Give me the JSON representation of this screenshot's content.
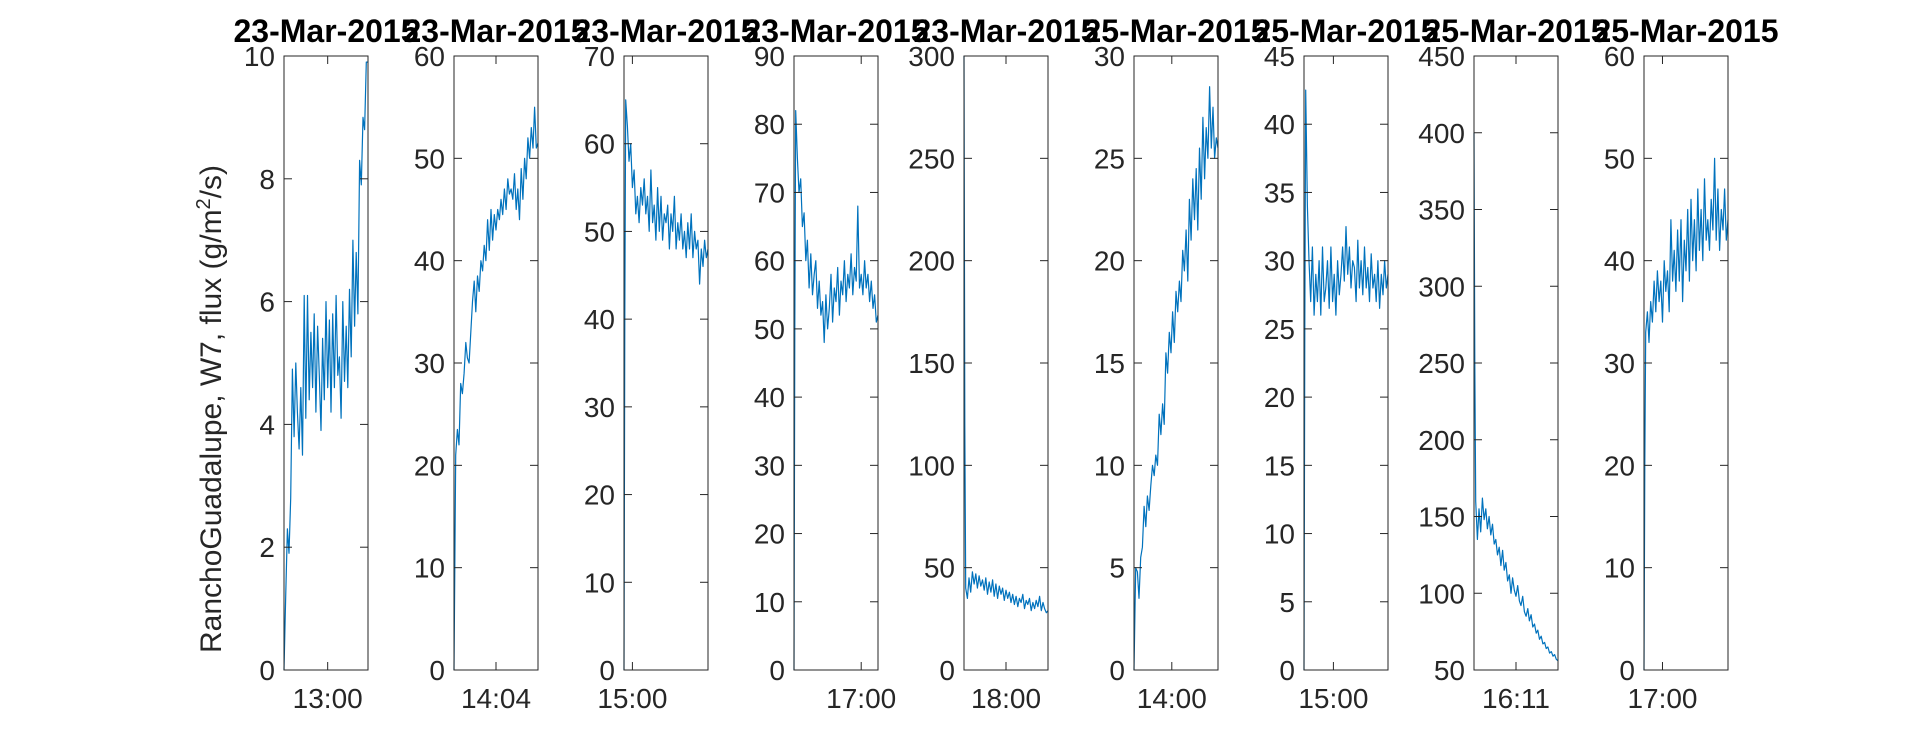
{
  "figure": {
    "ylabel": "RanchoGuadalupe, W7, flux (g/m",
    "ylabel_sup": "2",
    "ylabel_tail": "/s)",
    "line_color": "#0072BD"
  },
  "chart_data": [
    {
      "type": "line",
      "title": "23-Mar-2015",
      "ylim": [
        0,
        10
      ],
      "yticks": [
        0,
        2,
        4,
        6,
        8,
        10
      ],
      "xticks": [
        {
          "label": "13:00",
          "pos": 0.52
        }
      ],
      "x": [
        0,
        0.02,
        0.04,
        0.06,
        0.08,
        0.1,
        0.12,
        0.14,
        0.16,
        0.18,
        0.2,
        0.22,
        0.24,
        0.26,
        0.28,
        0.3,
        0.32,
        0.34,
        0.36,
        0.38,
        0.4,
        0.42,
        0.44,
        0.46,
        0.48,
        0.5,
        0.52,
        0.54,
        0.56,
        0.58,
        0.6,
        0.62,
        0.64,
        0.66,
        0.68,
        0.7,
        0.72,
        0.74,
        0.76,
        0.78,
        0.8,
        0.82,
        0.84,
        0.86,
        0.88,
        0.9,
        0.92,
        0.94,
        0.96,
        0.98,
        1.0
      ],
      "y": [
        0.0,
        1.2,
        2.3,
        1.9,
        2.8,
        4.9,
        3.8,
        5.0,
        4.2,
        3.6,
        4.6,
        3.5,
        6.1,
        4.1,
        6.1,
        4.4,
        5.5,
        4.6,
        5.8,
        4.2,
        5.6,
        4.8,
        3.9,
        5.4,
        4.4,
        6.0,
        4.6,
        5.7,
        4.2,
        5.8,
        4.6,
        6.1,
        4.8,
        5.1,
        4.1,
        6.0,
        4.7,
        5.6,
        4.6,
        6.2,
        5.1,
        7.0,
        5.6,
        6.8,
        5.8,
        8.3,
        7.9,
        9.0,
        8.8,
        9.9,
        9.9
      ]
    },
    {
      "type": "line",
      "title": "23-Mar-2015",
      "ylim": [
        0,
        60
      ],
      "yticks": [
        0,
        10,
        20,
        30,
        40,
        50,
        60
      ],
      "xticks": [
        {
          "label": "14:04",
          "pos": 0.5
        }
      ],
      "x": [
        0,
        0.02,
        0.04,
        0.06,
        0.08,
        0.1,
        0.12,
        0.14,
        0.16,
        0.18,
        0.2,
        0.22,
        0.24,
        0.26,
        0.28,
        0.3,
        0.32,
        0.34,
        0.36,
        0.38,
        0.4,
        0.42,
        0.44,
        0.46,
        0.48,
        0.5,
        0.52,
        0.54,
        0.56,
        0.58,
        0.6,
        0.62,
        0.64,
        0.66,
        0.68,
        0.7,
        0.72,
        0.74,
        0.76,
        0.78,
        0.8,
        0.82,
        0.84,
        0.86,
        0.88,
        0.9,
        0.92,
        0.94,
        0.96,
        0.98,
        1.0
      ],
      "y": [
        0.0,
        21.0,
        23.5,
        22.0,
        28.0,
        27.0,
        29.0,
        32.0,
        30.5,
        30.0,
        33.0,
        36.0,
        38.0,
        35.0,
        38.5,
        37.0,
        40.0,
        39.0,
        41.5,
        40.0,
        44.0,
        41.0,
        45.0,
        42.0,
        44.5,
        43.0,
        45.0,
        44.0,
        46.0,
        44.5,
        47.0,
        45.0,
        48.0,
        46.5,
        47.0,
        46.0,
        48.5,
        45.0,
        47.0,
        44.0,
        49.0,
        46.0,
        50.0,
        48.0,
        52.0,
        50.0,
        53.0,
        51.0,
        55.0,
        51.0,
        51.5
      ]
    },
    {
      "type": "line",
      "title": "23-Mar-2015",
      "ylim": [
        0,
        70
      ],
      "yticks": [
        0,
        10,
        20,
        30,
        40,
        50,
        60,
        70
      ],
      "xticks": [
        {
          "label": "15:00",
          "pos": 0.1
        }
      ],
      "x": [
        0,
        0.01,
        0.02,
        0.04,
        0.06,
        0.08,
        0.1,
        0.12,
        0.14,
        0.16,
        0.18,
        0.2,
        0.22,
        0.24,
        0.26,
        0.28,
        0.3,
        0.32,
        0.34,
        0.36,
        0.38,
        0.4,
        0.42,
        0.44,
        0.46,
        0.48,
        0.5,
        0.52,
        0.54,
        0.56,
        0.58,
        0.6,
        0.62,
        0.64,
        0.66,
        0.68,
        0.7,
        0.72,
        0.74,
        0.76,
        0.78,
        0.8,
        0.82,
        0.84,
        0.86,
        0.88,
        0.9,
        0.92,
        0.94,
        0.96,
        0.98,
        1.0
      ],
      "y": [
        0.0,
        40.0,
        65.0,
        62.0,
        58.0,
        60.0,
        55.0,
        57.0,
        52.0,
        54.0,
        51.0,
        55.0,
        53.0,
        56.0,
        52.0,
        54.0,
        50.0,
        57.0,
        51.0,
        53.0,
        49.0,
        55.0,
        50.0,
        54.0,
        49.0,
        52.0,
        51.0,
        53.0,
        48.0,
        52.0,
        50.0,
        54.0,
        48.0,
        51.0,
        49.0,
        52.0,
        48.0,
        50.0,
        47.0,
        51.0,
        48.0,
        52.0,
        47.0,
        50.0,
        48.0,
        49.0,
        44.0,
        48.0,
        46.0,
        49.0,
        47.0,
        48.0
      ]
    },
    {
      "type": "line",
      "title": "23-Mar-2015",
      "ylim": [
        0,
        90
      ],
      "yticks": [
        0,
        10,
        20,
        30,
        40,
        50,
        60,
        70,
        80,
        90
      ],
      "xticks": [
        {
          "label": "17:00",
          "pos": 0.8
        }
      ],
      "x": [
        0,
        0.01,
        0.02,
        0.04,
        0.06,
        0.08,
        0.1,
        0.12,
        0.14,
        0.16,
        0.18,
        0.2,
        0.22,
        0.24,
        0.26,
        0.28,
        0.3,
        0.32,
        0.34,
        0.36,
        0.38,
        0.4,
        0.42,
        0.44,
        0.46,
        0.48,
        0.5,
        0.52,
        0.54,
        0.56,
        0.58,
        0.6,
        0.62,
        0.64,
        0.66,
        0.68,
        0.7,
        0.72,
        0.74,
        0.76,
        0.78,
        0.8,
        0.82,
        0.84,
        0.86,
        0.88,
        0.9,
        0.92,
        0.94,
        0.96,
        0.98,
        1.0
      ],
      "y": [
        0.0,
        50.0,
        82.0,
        75.0,
        70.0,
        72.0,
        65.0,
        67.0,
        60.0,
        63.0,
        56.0,
        61.0,
        55.0,
        58.0,
        60.0,
        53.0,
        57.0,
        52.0,
        54.0,
        48.0,
        55.0,
        50.0,
        53.0,
        58.0,
        51.0,
        56.0,
        54.0,
        59.0,
        52.0,
        57.0,
        55.0,
        60.0,
        54.0,
        58.0,
        56.0,
        61.0,
        55.0,
        59.0,
        57.0,
        68.0,
        56.0,
        58.0,
        55.0,
        60.0,
        56.0,
        58.0,
        54.0,
        57.0,
        53.0,
        55.0,
        51.0,
        52.0
      ]
    },
    {
      "type": "line",
      "title": "23-Mar-2015",
      "ylim": [
        0,
        300
      ],
      "yticks": [
        0,
        50,
        100,
        150,
        200,
        250,
        300
      ],
      "xticks": [
        {
          "label": "18:00",
          "pos": 0.5
        }
      ],
      "x": [
        0,
        0.01,
        0.02,
        0.04,
        0.06,
        0.08,
        0.1,
        0.12,
        0.14,
        0.16,
        0.18,
        0.2,
        0.22,
        0.24,
        0.26,
        0.28,
        0.3,
        0.32,
        0.34,
        0.36,
        0.38,
        0.4,
        0.42,
        0.44,
        0.46,
        0.48,
        0.5,
        0.52,
        0.54,
        0.56,
        0.58,
        0.6,
        0.62,
        0.64,
        0.66,
        0.68,
        0.7,
        0.72,
        0.74,
        0.76,
        0.78,
        0.8,
        0.82,
        0.84,
        0.86,
        0.88,
        0.9,
        0.92,
        0.94,
        0.96,
        0.98,
        1.0
      ],
      "y": [
        300.0,
        120.0,
        40.0,
        35.0,
        45.0,
        38.0,
        48.0,
        42.0,
        47.0,
        40.0,
        46.0,
        41.0,
        44.0,
        39.0,
        45.0,
        37.0,
        43.0,
        38.0,
        44.0,
        36.0,
        42.0,
        35.0,
        41.0,
        37.0,
        40.0,
        34.0,
        39.0,
        35.0,
        38.0,
        33.0,
        37.0,
        32.0,
        36.0,
        31.0,
        35.0,
        33.0,
        37.0,
        30.0,
        34.0,
        32.0,
        35.0,
        29.0,
        33.0,
        30.0,
        34.0,
        31.0,
        36.0,
        29.0,
        33.0,
        30.0,
        28.0,
        29.0
      ]
    },
    {
      "type": "line",
      "title": "25-Mar-2015",
      "ylim": [
        0,
        30
      ],
      "yticks": [
        0,
        5,
        10,
        15,
        20,
        25,
        30
      ],
      "xticks": [
        {
          "label": "14:00",
          "pos": 0.45
        }
      ],
      "x": [
        0,
        0.02,
        0.04,
        0.06,
        0.08,
        0.1,
        0.12,
        0.14,
        0.16,
        0.18,
        0.2,
        0.22,
        0.24,
        0.26,
        0.28,
        0.3,
        0.32,
        0.34,
        0.36,
        0.38,
        0.4,
        0.42,
        0.44,
        0.46,
        0.48,
        0.5,
        0.52,
        0.54,
        0.56,
        0.58,
        0.6,
        0.62,
        0.64,
        0.66,
        0.68,
        0.7,
        0.72,
        0.74,
        0.76,
        0.78,
        0.8,
        0.82,
        0.84,
        0.86,
        0.88,
        0.9,
        0.92,
        0.94,
        0.96,
        0.98,
        1.0
      ],
      "y": [
        0.0,
        5.0,
        4.8,
        3.5,
        5.5,
        6.0,
        8.0,
        7.0,
        8.5,
        7.8,
        9.0,
        10.0,
        9.5,
        10.5,
        10.0,
        12.5,
        11.5,
        13.0,
        12.0,
        15.5,
        14.5,
        16.5,
        15.5,
        17.5,
        16.0,
        18.5,
        17.5,
        19.0,
        18.0,
        20.5,
        19.5,
        21.5,
        19.0,
        23.0,
        21.0,
        24.0,
        22.0,
        24.5,
        21.5,
        25.5,
        23.0,
        27.0,
        24.0,
        26.5,
        25.0,
        28.5,
        25.5,
        27.5,
        25.0,
        26.0,
        25.5
      ]
    },
    {
      "type": "line",
      "title": "25-Mar-2015",
      "ylim": [
        0,
        45
      ],
      "yticks": [
        0,
        5,
        10,
        15,
        20,
        25,
        30,
        35,
        40,
        45
      ],
      "xticks": [
        {
          "label": "15:00",
          "pos": 0.35
        }
      ],
      "x": [
        0,
        0.01,
        0.02,
        0.04,
        0.06,
        0.08,
        0.1,
        0.12,
        0.14,
        0.16,
        0.18,
        0.2,
        0.22,
        0.24,
        0.26,
        0.28,
        0.3,
        0.32,
        0.34,
        0.36,
        0.38,
        0.4,
        0.42,
        0.44,
        0.46,
        0.48,
        0.5,
        0.52,
        0.54,
        0.56,
        0.58,
        0.6,
        0.62,
        0.64,
        0.66,
        0.68,
        0.7,
        0.72,
        0.74,
        0.76,
        0.78,
        0.8,
        0.82,
        0.84,
        0.86,
        0.88,
        0.9,
        0.92,
        0.94,
        0.96,
        0.98,
        1.0
      ],
      "y": [
        0.0,
        25.0,
        42.5,
        34.0,
        30.0,
        27.0,
        31.0,
        26.0,
        29.0,
        27.0,
        30.0,
        26.0,
        31.0,
        27.0,
        28.0,
        30.0,
        26.5,
        31.0,
        27.0,
        29.0,
        26.0,
        30.0,
        27.5,
        29.0,
        31.0,
        28.5,
        32.5,
        29.0,
        31.0,
        28.0,
        30.0,
        29.5,
        27.0,
        31.5,
        28.0,
        30.0,
        27.5,
        31.0,
        28.0,
        29.5,
        27.0,
        30.5,
        28.0,
        29.0,
        27.0,
        30.0,
        26.5,
        29.0,
        27.5,
        30.0,
        28.0,
        29.0
      ]
    },
    {
      "type": "line",
      "title": "25-Mar-2015",
      "ylim": [
        50,
        450
      ],
      "yticks": [
        50,
        100,
        150,
        200,
        250,
        300,
        350,
        400,
        450
      ],
      "xticks": [
        {
          "label": "16:11",
          "pos": 0.5
        }
      ],
      "x": [
        0,
        0.01,
        0.02,
        0.04,
        0.06,
        0.08,
        0.1,
        0.12,
        0.14,
        0.16,
        0.18,
        0.2,
        0.22,
        0.24,
        0.26,
        0.28,
        0.3,
        0.32,
        0.34,
        0.36,
        0.38,
        0.4,
        0.42,
        0.44,
        0.46,
        0.48,
        0.5,
        0.52,
        0.54,
        0.56,
        0.58,
        0.6,
        0.62,
        0.64,
        0.66,
        0.68,
        0.7,
        0.72,
        0.74,
        0.76,
        0.78,
        0.8,
        0.82,
        0.84,
        0.86,
        0.88,
        0.9,
        0.92,
        0.94,
        0.96,
        0.98,
        1.0
      ],
      "y": [
        400.0,
        250.0,
        160.0,
        135.0,
        155.0,
        140.0,
        162.0,
        148.0,
        155.0,
        142.0,
        150.0,
        138.0,
        145.0,
        132.0,
        135.0,
        125.0,
        130.0,
        118.0,
        128.0,
        115.0,
        120.0,
        108.0,
        112.0,
        100.0,
        110.0,
        102.0,
        98.0,
        105.0,
        95.0,
        92.0,
        98.0,
        88.0,
        85.0,
        90.0,
        82.0,
        86.0,
        78.0,
        80.0,
        74.0,
        76.0,
        70.0,
        72.0,
        67.0,
        68.0,
        64.0,
        65.0,
        61.0,
        62.0,
        59.0,
        60.0,
        57.0,
        56.0
      ]
    },
    {
      "type": "line",
      "title": "25-Mar-2015",
      "ylim": [
        0,
        60
      ],
      "yticks": [
        0,
        10,
        20,
        30,
        40,
        50,
        60
      ],
      "xticks": [
        {
          "label": "17:00",
          "pos": 0.22
        }
      ],
      "x": [
        0,
        0.01,
        0.02,
        0.04,
        0.06,
        0.08,
        0.1,
        0.12,
        0.14,
        0.16,
        0.18,
        0.2,
        0.22,
        0.24,
        0.26,
        0.28,
        0.3,
        0.32,
        0.34,
        0.36,
        0.38,
        0.4,
        0.42,
        0.44,
        0.46,
        0.48,
        0.5,
        0.52,
        0.54,
        0.56,
        0.58,
        0.6,
        0.62,
        0.64,
        0.66,
        0.68,
        0.7,
        0.72,
        0.74,
        0.76,
        0.78,
        0.8,
        0.82,
        0.84,
        0.86,
        0.88,
        0.9,
        0.92,
        0.94,
        0.96,
        0.98,
        1.0
      ],
      "y": [
        0.0,
        20.0,
        33.0,
        35.0,
        32.0,
        36.0,
        34.0,
        38.0,
        35.0,
        39.0,
        36.0,
        38.0,
        34.0,
        40.0,
        37.0,
        39.0,
        35.0,
        44.0,
        38.0,
        41.0,
        37.0,
        43.0,
        38.0,
        44.0,
        36.0,
        42.0,
        39.0,
        45.0,
        38.0,
        46.0,
        40.0,
        44.0,
        39.0,
        47.0,
        41.0,
        45.0,
        40.0,
        48.0,
        42.0,
        44.0,
        41.0,
        46.0,
        43.0,
        50.0,
        42.0,
        47.0,
        41.0,
        45.0,
        43.0,
        47.0,
        42.0,
        44.0
      ]
    }
  ]
}
